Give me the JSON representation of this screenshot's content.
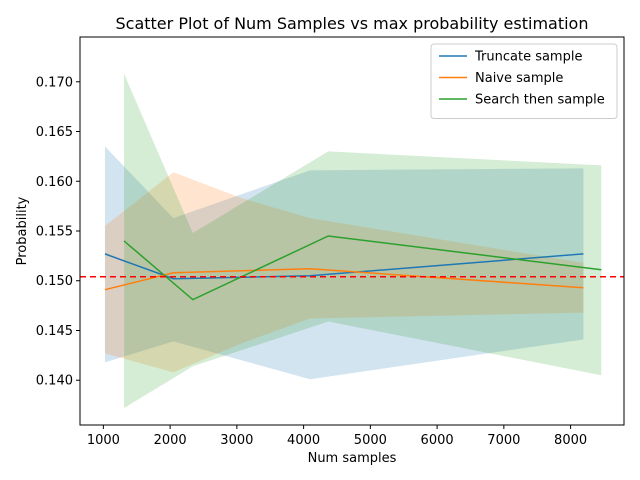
{
  "chart_data": {
    "type": "line",
    "title": "Scatter Plot of Num Samples vs max probability estimation",
    "xlabel": "Num samples",
    "ylabel": "Probability",
    "xlim": [
      650,
      8800
    ],
    "ylim": [
      0.1355,
      0.1745
    ],
    "xticks": [
      1000,
      2000,
      3000,
      4000,
      5000,
      6000,
      7000,
      8000
    ],
    "xtick_labels": [
      "1000",
      "2000",
      "3000",
      "4000",
      "5000",
      "6000",
      "7000",
      "8000"
    ],
    "yticks": [
      0.14,
      0.145,
      0.15,
      0.155,
      0.16,
      0.165,
      0.17
    ],
    "ytick_labels": [
      "0.140",
      "0.145",
      "0.150",
      "0.155",
      "0.160",
      "0.165",
      "0.170"
    ],
    "reference_line": {
      "y": 0.1504,
      "color": "#ff0000",
      "style": "dashed"
    },
    "legend": {
      "position": "top-right"
    },
    "series": [
      {
        "name": "Truncate sample",
        "color": "#1f77b4",
        "x": [
          1024,
          2048,
          4096,
          8192
        ],
        "y": [
          0.1527,
          0.1502,
          0.1505,
          0.1527
        ],
        "lower": [
          0.1418,
          0.1439,
          0.1401,
          0.1441
        ],
        "upper": [
          0.1635,
          0.1563,
          0.1611,
          0.1613
        ]
      },
      {
        "name": "Naive sample",
        "color": "#ff7f0e",
        "x": [
          1024,
          2048,
          3072,
          4096,
          8192
        ],
        "y": [
          0.1491,
          0.1508,
          0.151,
          0.1512,
          0.1493
        ],
        "lower": [
          0.1427,
          0.1408,
          0.1437,
          0.1462,
          0.1468
        ],
        "upper": [
          0.1555,
          0.1609,
          0.1583,
          0.1563,
          0.1518
        ]
      },
      {
        "name": "Search then sample",
        "color": "#2ca02c",
        "x": [
          1310,
          2340,
          4370,
          8460
        ],
        "y": [
          0.154,
          0.1481,
          0.1545,
          0.1511
        ],
        "lower": [
          0.1372,
          0.1414,
          0.1459,
          0.1405
        ],
        "upper": [
          0.1708,
          0.1548,
          0.163,
          0.1616
        ]
      }
    ]
  }
}
